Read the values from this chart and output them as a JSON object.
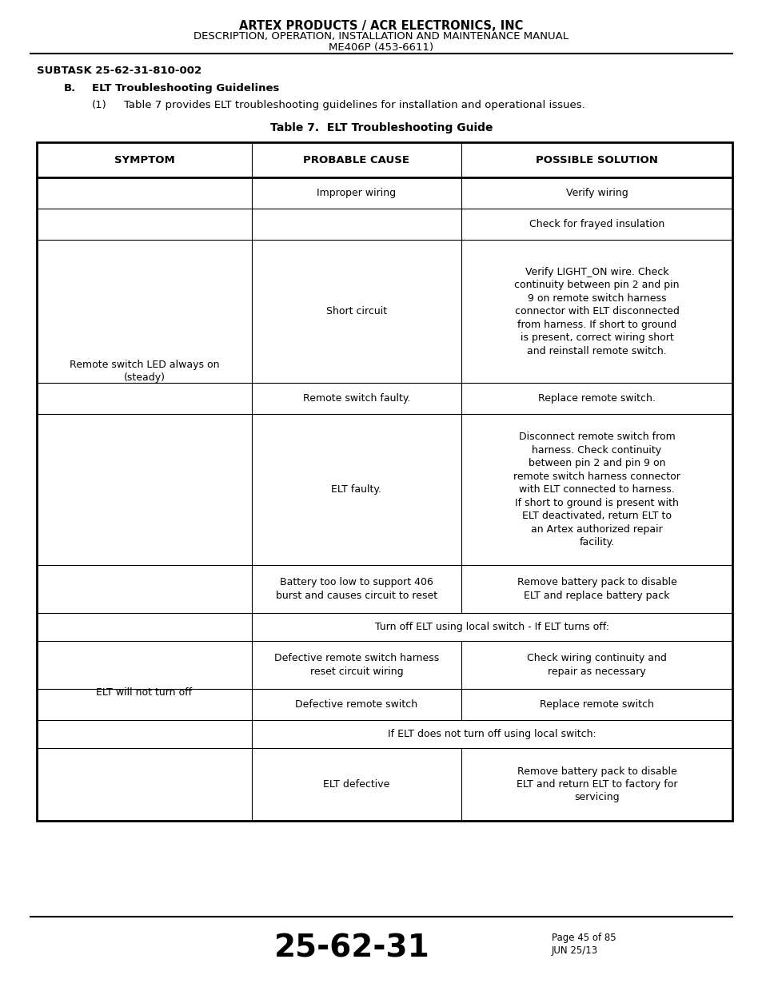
{
  "title_line1": "ARTEX PRODUCTS / ACR ELECTRONICS, INC",
  "title_line2": "DESCRIPTION, OPERATION, INSTALLATION AND MAINTENANCE MANUAL",
  "title_line3": "ME406P (453-6611)",
  "subtask": "SUBTASK 25-62-31-810-002",
  "section_b_label": "B.",
  "section_b_text": "ELT Troubleshooting Guidelines",
  "para_num": "(1)",
  "para_text": "Table 7 provides ELT troubleshooting guidelines for installation and operational issues.",
  "table_title": "Table 7.  ELT Troubleshooting Guide",
  "col_headers": [
    "SYMPTOM",
    "PROBABLE CAUSE",
    "POSSIBLE SOLUTION"
  ],
  "footer_code": "25-62-31",
  "footer_page": "Page 45 of 85",
  "footer_date": "JUN 25/13",
  "sym1": "Remote switch LED always on\n(steady)",
  "sym2": "ELT will not turn off",
  "r1_cause": "Improper wiring",
  "r1_sol": "Verify wiring",
  "r2_sol": "Check for frayed insulation",
  "r3_cause": "Short circuit",
  "r3_sol": "Verify LIGHT_ON wire. Check\ncontinuity between pin 2 and pin\n9 on remote switch harness\nconnector with ELT disconnected\nfrom harness. If short to ground\nis present, correct wiring short\nand reinstall remote switch.",
  "r4_cause": "Remote switch faulty.",
  "r4_sol": "Replace remote switch.",
  "r5_cause": "ELT faulty.",
  "r5_sol": "Disconnect remote switch from\nharness. Check continuity\nbetween pin 2 and pin 9 on\nremote switch harness connector\nwith ELT connected to harness.\nIf short to ground is present with\nELT deactivated, return ELT to\nan Artex authorized repair\nfacility.",
  "r6_cause": "Battery too low to support 406\nburst and causes circuit to reset",
  "r6_sol": "Remove battery pack to disable\nELT and replace battery pack",
  "r7_merged": "Turn off ELT using local switch - If ELT turns off:",
  "r8_cause": "Defective remote switch harness\nreset circuit wiring",
  "r8_sol": "Check wiring continuity and\nrepair as necessary",
  "r9_cause": "Defective remote switch",
  "r9_sol": "Replace remote switch",
  "r10_merged": "If ELT does not turn off using local switch:",
  "r11_cause": "ELT defective",
  "r11_sol": "Remove battery pack to disable\nELT and return ELT to factory for\nservicing"
}
